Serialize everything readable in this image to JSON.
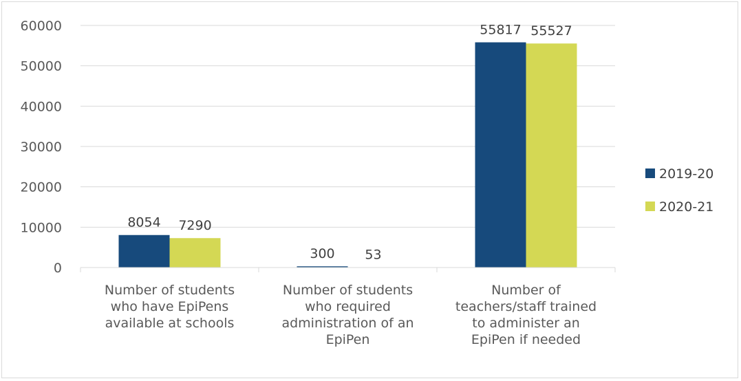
{
  "chart_data": {
    "type": "bar",
    "categories": [
      [
        "Number of students",
        "who have EpiPens",
        "available at schools"
      ],
      [
        "Number of students",
        "who required",
        "administration of an",
        "EpiPen"
      ],
      [
        "Number of",
        "teachers/staff trained",
        "to administer an",
        "EpiPen if needed"
      ]
    ],
    "series": [
      {
        "name": "2019-20",
        "values": [
          8054,
          300,
          55817
        ],
        "color": "#174A7C"
      },
      {
        "name": "2020-21",
        "values": [
          7290,
          53,
          55527
        ],
        "color": "#D4D854"
      }
    ],
    "ylim": [
      0,
      60000
    ],
    "yticks": [
      0,
      10000,
      20000,
      30000,
      40000,
      50000,
      60000
    ],
    "grid": true,
    "legend_position": "right",
    "data_labels": true
  }
}
